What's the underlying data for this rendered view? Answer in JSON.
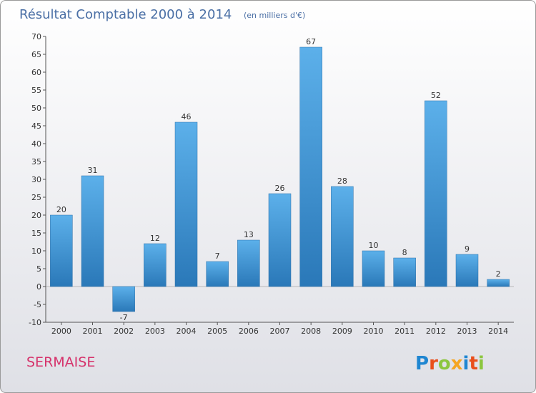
{
  "chart_data": {
    "type": "bar",
    "title": "Résultat Comptable 2000 à 2014",
    "subtitle": "(en milliers d'€)",
    "categories": [
      "2000",
      "2001",
      "2002",
      "2003",
      "2004",
      "2005",
      "2006",
      "2007",
      "2008",
      "2009",
      "2010",
      "2011",
      "2012",
      "2013",
      "2014"
    ],
    "values": [
      20,
      31,
      -7,
      12,
      46,
      7,
      13,
      26,
      67,
      28,
      10,
      8,
      52,
      9,
      2
    ],
    "ylim": [
      -10,
      70
    ],
    "ytick_step": 5,
    "grid": false,
    "bar_color": "#3f95d8"
  },
  "footer": {
    "town": "SERMAISE",
    "logo": {
      "letters": [
        "P",
        "r",
        "o",
        "x",
        "i",
        "t",
        "i"
      ],
      "colors": [
        "#1f86d1",
        "#e94e1b",
        "#8cc63f",
        "#f5a623",
        "#1f86d1",
        "#e94e1b",
        "#8cc63f"
      ]
    }
  }
}
